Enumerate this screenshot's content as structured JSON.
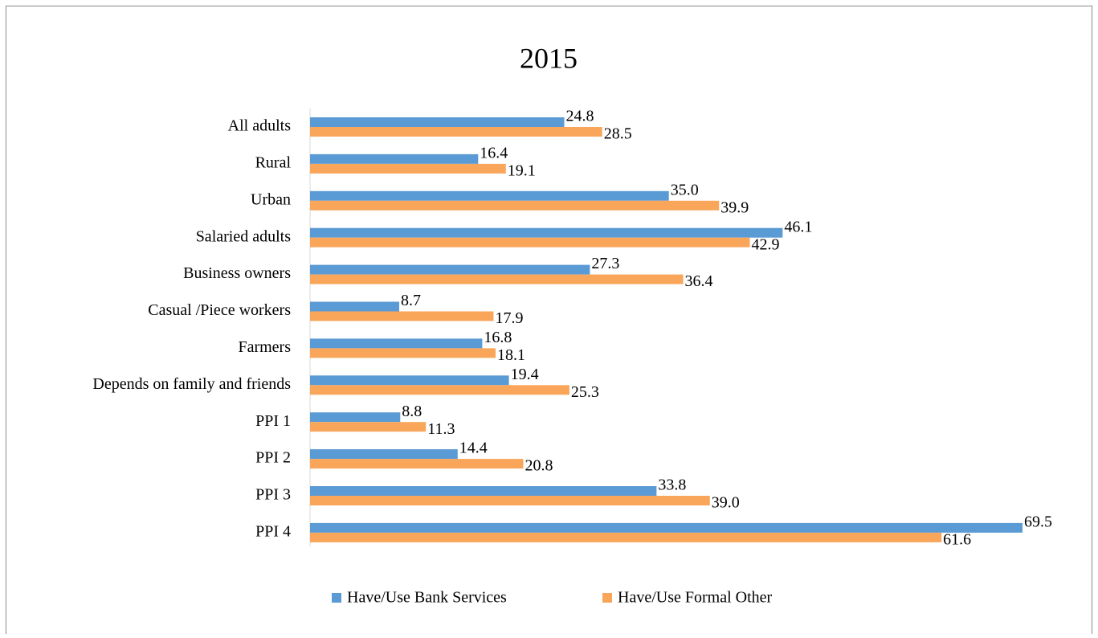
{
  "chart_data": {
    "type": "hbar",
    "title": "2015",
    "categories": [
      "All adults",
      "Rural",
      "Urban",
      "Salaried adults",
      "Business owners",
      "Casual /Piece workers",
      "Farmers",
      "Depends on family and friends",
      "PPI 1",
      "PPI 2",
      "PPI 3",
      "PPI 4"
    ],
    "series": [
      {
        "name": "Have/Use Bank Services",
        "color": "#5b9bd5",
        "values": [
          24.8,
          16.4,
          35.0,
          46.1,
          27.3,
          8.7,
          16.8,
          19.4,
          8.8,
          14.4,
          33.8,
          69.5
        ],
        "value_labels": [
          "24.8",
          "16.4",
          "35.0",
          "46.1",
          "27.3",
          "8.7",
          "16.8",
          "19.4",
          "8.8",
          "14.4",
          "33.8",
          "69.5"
        ]
      },
      {
        "name": "Have/Use Formal Other",
        "color": "#f9a65a",
        "values": [
          28.5,
          19.1,
          39.9,
          42.9,
          36.4,
          17.9,
          18.1,
          25.3,
          11.3,
          20.8,
          39.0,
          61.6
        ],
        "value_labels": [
          "28.5",
          "19.1",
          "39.9",
          "42.9",
          "36.4",
          "17.9",
          "18.1",
          "25.3",
          "11.3",
          "20.8",
          "39.0",
          "61.6"
        ]
      }
    ],
    "legend": "bottom"
  }
}
